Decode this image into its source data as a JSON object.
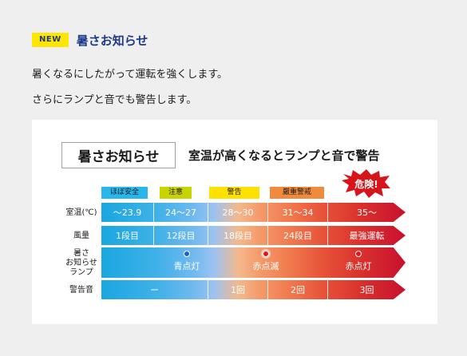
{
  "header": {
    "badge": "NEW",
    "title": "暑さお知らせ"
  },
  "description": {
    "line1": "暑くなるにしたがって運転を強くします。",
    "line2": "さらにランプと音でも警告します。"
  },
  "panel": {
    "feature_label": "暑さお知らせ",
    "subtitle": "室温が高くなるとランプと音で警告",
    "danger_label": "危険!",
    "levels": [
      {
        "label": "ほぼ安全",
        "color": "#29b6ea"
      },
      {
        "label": "注意",
        "color": "#c8d400"
      },
      {
        "label": "警告",
        "color": "#ffe100"
      },
      {
        "label": "厳重警戒",
        "color": "#f08a3c"
      }
    ],
    "rows": {
      "temperature": {
        "label": "室温(℃)",
        "values": [
          "～23.9",
          "24～27",
          "28～30",
          "31～34",
          "35～"
        ]
      },
      "airflow": {
        "label": "風量",
        "values": [
          "1段目",
          "12段目",
          "18段目",
          "24段目",
          "最強運転"
        ]
      },
      "lamp": {
        "label_line1": "暑さ",
        "label_line2": "お知らせ",
        "label_line3": "ランプ",
        "states": [
          {
            "text": "青点灯",
            "dot_color": "#1a5fd6"
          },
          {
            "text": "赤点滅",
            "dot_color": "#e3141b"
          },
          {
            "text": "赤点灯",
            "dot_color": "#e3141b"
          }
        ]
      },
      "alarm": {
        "label": "警告音",
        "values": [
          "ー",
          "1回",
          "2回",
          "3回"
        ]
      }
    }
  }
}
